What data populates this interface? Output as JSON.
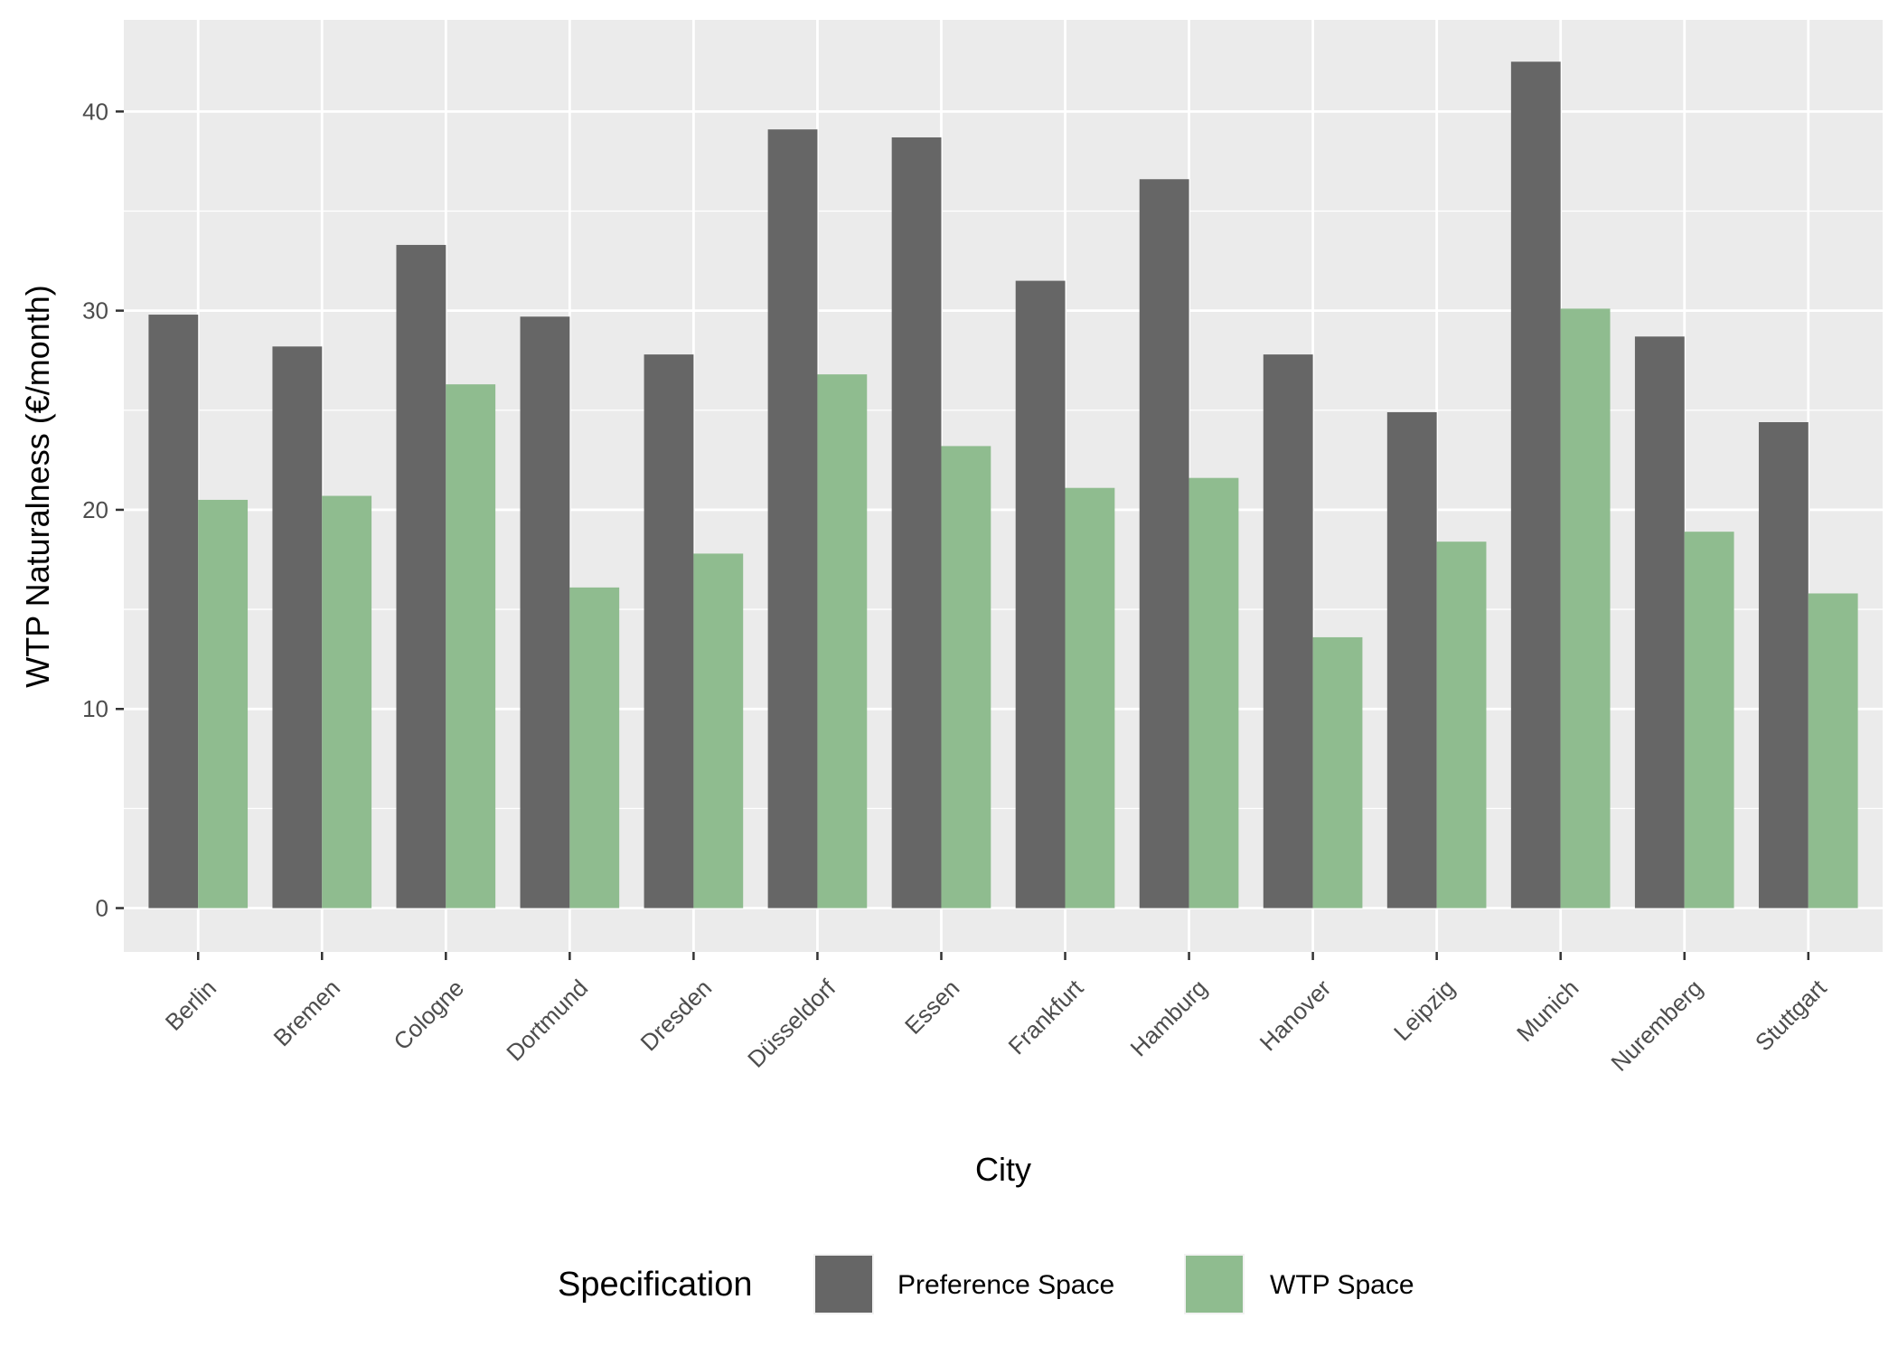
{
  "chart_data": {
    "type": "bar",
    "xlabel": "City",
    "ylabel": "WTP Naturalness (€/month)",
    "ylim": [
      -2.2,
      44.6
    ],
    "yticks": [
      0,
      10,
      20,
      30,
      40
    ],
    "grid": true,
    "legend_position": "bottom",
    "legend_title": "Specification",
    "categories": [
      "Berlin",
      "Bremen",
      "Cologne",
      "Dortmund",
      "Dresden",
      "Düsseldorf",
      "Essen",
      "Frankfurt",
      "Hamburg",
      "Hanover",
      "Leipzig",
      "Munich",
      "Nuremberg",
      "Stuttgart"
    ],
    "series": [
      {
        "name": "Preference Space",
        "color": "#666666",
        "values": [
          29.8,
          28.2,
          33.3,
          29.7,
          27.8,
          39.1,
          38.7,
          31.5,
          36.6,
          27.8,
          24.9,
          42.5,
          28.7,
          24.4
        ]
      },
      {
        "name": "WTP Space",
        "color": "#8fbc8f",
        "values": [
          20.5,
          20.7,
          26.3,
          16.1,
          17.8,
          26.8,
          23.2,
          21.1,
          21.6,
          13.6,
          18.4,
          30.1,
          18.9,
          15.8
        ]
      }
    ]
  },
  "colors": {
    "panel_background": "#ebebeb",
    "grid_line": "#ffffff",
    "tick_text": "#4d4d4d"
  }
}
